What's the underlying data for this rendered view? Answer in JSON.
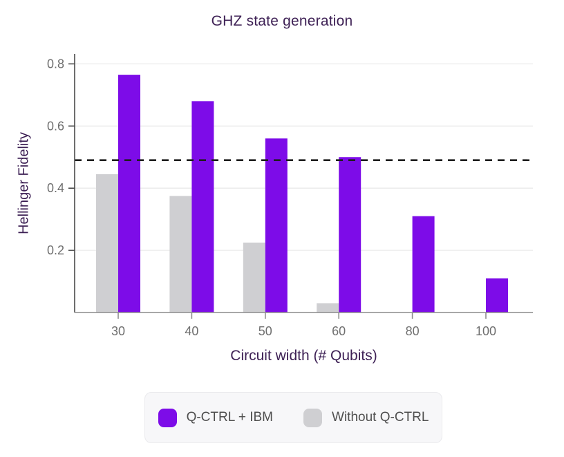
{
  "page": {
    "background": "#ffffff"
  },
  "chart_data": {
    "type": "bar",
    "title": "GHZ state generation",
    "xlabel": "Circuit width (# Qubits)",
    "ylabel": "Hellinger Fidelity",
    "categories": [
      "30",
      "40",
      "50",
      "60",
      "80",
      "100"
    ],
    "series": [
      {
        "name": "Q-CTRL + IBM",
        "color": "#7d0ce8",
        "values": [
          0.765,
          0.68,
          0.56,
          0.5,
          0.31,
          0.11
        ]
      },
      {
        "name": "Without Q-CTRL",
        "color": "#cfcfd2",
        "values": [
          0.445,
          0.375,
          0.225,
          0.03,
          0,
          0
        ]
      }
    ],
    "threshold_line": {
      "value": 0.49,
      "style": "dashed",
      "color": "#1e1e1e"
    },
    "yticks": [
      0.2,
      0.4,
      0.6,
      0.8
    ],
    "ylim": [
      0,
      0.832
    ],
    "grid": true,
    "legend_position": "bottom",
    "colors": {
      "title_text": "#3e2155",
      "tick_text": "#6f6f6f",
      "gridline": "#eaeaea",
      "y_spine": "#4a4a4a",
      "x_spine": "#8c8c8c",
      "legend_background": "#f7f7f9",
      "legend_border": "#eaeaed",
      "legend_text": "#4f4f4f"
    }
  }
}
